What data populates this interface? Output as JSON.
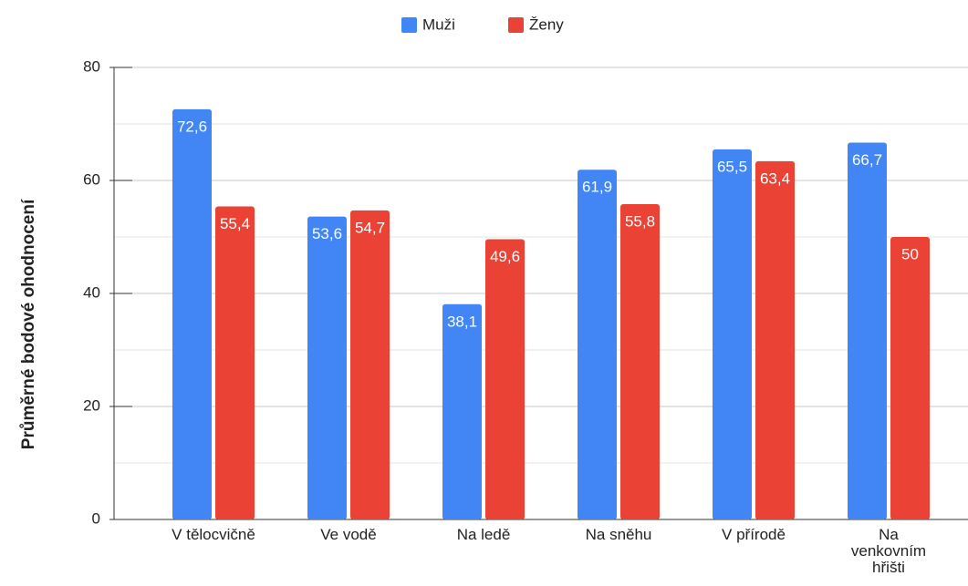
{
  "chart_data": {
    "type": "bar",
    "ylabel": "Průměrné bodové ohodnocení",
    "categories": [
      "V tělocvičně",
      "Ve vodě",
      "Na ledě",
      "Na sněhu",
      "V přírodě",
      "Na venkovním hřišti"
    ],
    "series": [
      {
        "name": "Muži",
        "color": "#4285f4",
        "values": [
          72.6,
          53.6,
          38.1,
          61.9,
          65.5,
          66.7
        ],
        "value_labels": [
          "72,6",
          "53,6",
          "38,1",
          "61,9",
          "65,5",
          "66,7"
        ]
      },
      {
        "name": "Ženy",
        "color": "#ea4335",
        "values": [
          55.4,
          54.7,
          49.6,
          55.8,
          63.4,
          50
        ],
        "value_labels": [
          "55,4",
          "54,7",
          "49,6",
          "55,8",
          "63,4",
          "50"
        ]
      }
    ],
    "ylim": [
      0,
      80
    ],
    "yticks": [
      0,
      20,
      40,
      60,
      80
    ],
    "yminorticks": [
      10,
      30,
      50,
      70
    ],
    "grid": true,
    "legend": "top"
  }
}
